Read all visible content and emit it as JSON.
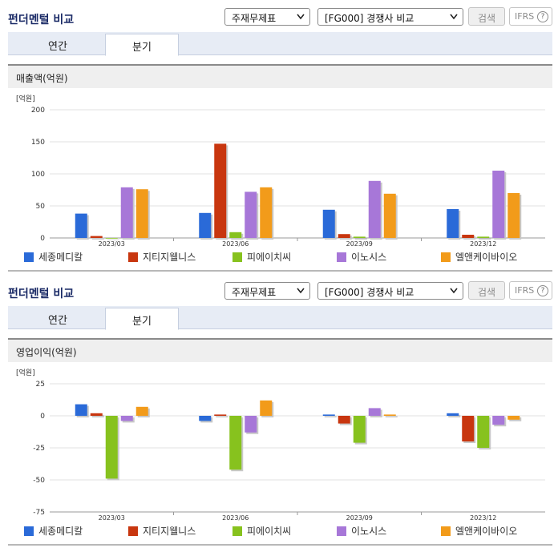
{
  "sections": [
    {
      "title": "펀더멘털 비교",
      "select_type": "주재무제표",
      "select_compare": "[FG000] 경쟁사 비교",
      "search_label": "검색",
      "ifrs_label": "IFRS",
      "help_label": "?",
      "tabs": [
        "연간",
        "분기"
      ],
      "chart_title": "매출액(억원)",
      "unit": "[억원]"
    },
    {
      "title": "펀더멘털 비교",
      "select_type": "주재무제표",
      "select_compare": "[FG000] 경쟁사 비교",
      "search_label": "검색",
      "ifrs_label": "IFRS",
      "help_label": "?",
      "tabs": [
        "연간",
        "분기"
      ],
      "chart_title": "영업이익(억원)",
      "unit": "[억원]"
    }
  ],
  "colors": {
    "세종메디칼": "#2a6ad8",
    "지티지웰니스": "#c8360f",
    "피에이치씨": "#87c21e",
    "이노시스": "#a777d8",
    "엘앤케이바이오": "#f29b1a"
  },
  "chart_data": [
    {
      "type": "bar",
      "title": "매출액(억원)",
      "ylabel": "[억원]",
      "categories": [
        "2023/03",
        "2023/06",
        "2023/09",
        "2023/12"
      ],
      "ylim": [
        0,
        200
      ],
      "yticks": [
        0,
        50,
        100,
        150,
        200
      ],
      "series": [
        {
          "name": "세종메디칼",
          "values": [
            38,
            39,
            44,
            45
          ]
        },
        {
          "name": "지티지웰니스",
          "values": [
            3,
            147,
            6,
            5
          ]
        },
        {
          "name": "피에이치씨",
          "values": [
            0,
            9,
            2,
            2
          ]
        },
        {
          "name": "이노시스",
          "values": [
            79,
            72,
            89,
            105
          ]
        },
        {
          "name": "엘앤케이바이오",
          "values": [
            76,
            79,
            69,
            70
          ]
        }
      ],
      "legend": "bottom",
      "grid": true
    },
    {
      "type": "bar",
      "title": "영업이익(억원)",
      "ylabel": "[억원]",
      "categories": [
        "2023/03",
        "2023/06",
        "2023/09",
        "2023/12"
      ],
      "ylim": [
        -75,
        25
      ],
      "yticks": [
        -75,
        -50,
        -25,
        0,
        25
      ],
      "series": [
        {
          "name": "세종메디칼",
          "values": [
            9,
            -4,
            1,
            2
          ]
        },
        {
          "name": "지티지웰니스",
          "values": [
            2,
            1,
            -6,
            -20
          ]
        },
        {
          "name": "피에이치씨",
          "values": [
            -49,
            -42,
            -21,
            -25
          ]
        },
        {
          "name": "이노시스",
          "values": [
            -4,
            -13,
            6,
            -7
          ]
        },
        {
          "name": "엘앤케이바이오",
          "values": [
            7,
            12,
            1,
            -3
          ]
        }
      ],
      "legend": "bottom",
      "grid": true
    }
  ]
}
